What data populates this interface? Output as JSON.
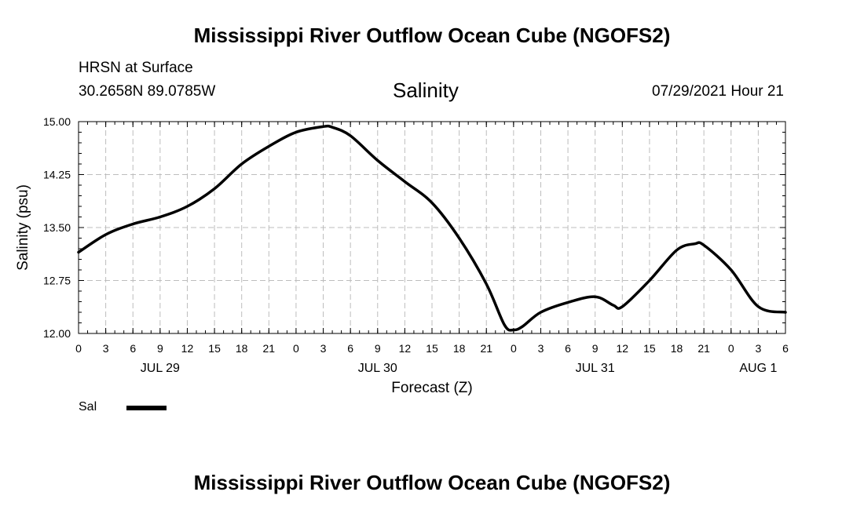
{
  "page": {
    "title_top": "Mississippi River Outflow Ocean Cube (NGOFS2)",
    "title_bottom": "Mississippi River Outflow Ocean Cube (NGOFS2)",
    "station": "HRSN at Surface",
    "coords": "30.2658N  89.0785W",
    "datetime": "07/29/2021 Hour 21"
  },
  "chart_data": {
    "type": "line",
    "title": "Salinity",
    "xlabel": "Forecast (Z)",
    "ylabel": "Salinity (psu)",
    "xlim": [
      0,
      78
    ],
    "ylim": [
      12.0,
      15.0
    ],
    "grid": true,
    "x_ticks": [
      0,
      3,
      6,
      9,
      12,
      15,
      18,
      21,
      24,
      27,
      30,
      33,
      36,
      39,
      42,
      45,
      48,
      51,
      54,
      57,
      60,
      63,
      66,
      69,
      72,
      75,
      78
    ],
    "x_tick_labels": [
      "0",
      "3",
      "6",
      "9",
      "12",
      "15",
      "18",
      "21",
      "0",
      "3",
      "6",
      "9",
      "12",
      "15",
      "18",
      "21",
      "0",
      "3",
      "6",
      "9",
      "12",
      "15",
      "18",
      "21",
      "0",
      "3",
      "6"
    ],
    "y_ticks": [
      12.0,
      12.75,
      13.5,
      14.25,
      15.0
    ],
    "y_tick_labels": [
      "12.00",
      "12.75",
      "13.50",
      "14.25",
      "15.00"
    ],
    "date_labels": [
      {
        "x": 9,
        "label": "JUL 29"
      },
      {
        "x": 33,
        "label": "JUL 30"
      },
      {
        "x": 57,
        "label": "JUL 31"
      },
      {
        "x": 75,
        "label": "AUG 1"
      }
    ],
    "series": [
      {
        "name": "Sal",
        "color": "#000000",
        "x": [
          0,
          3,
          6,
          9,
          12,
          15,
          18,
          21,
          24,
          27,
          28,
          30,
          33,
          36,
          39,
          42,
          45,
          47,
          48,
          49,
          51,
          54,
          57,
          59,
          60,
          63,
          66,
          68,
          69,
          72,
          75,
          78
        ],
        "values": [
          13.15,
          13.4,
          13.55,
          13.65,
          13.8,
          14.05,
          14.4,
          14.65,
          14.85,
          14.93,
          14.92,
          14.8,
          14.45,
          14.15,
          13.85,
          13.35,
          12.7,
          12.12,
          12.05,
          12.1,
          12.3,
          12.44,
          12.52,
          12.4,
          12.38,
          12.75,
          13.18,
          13.27,
          13.25,
          12.9,
          12.38,
          12.3
        ]
      }
    ],
    "legend": [
      {
        "label": "Sal",
        "color": "#000000"
      }
    ],
    "legend_position": "bottom-left"
  }
}
